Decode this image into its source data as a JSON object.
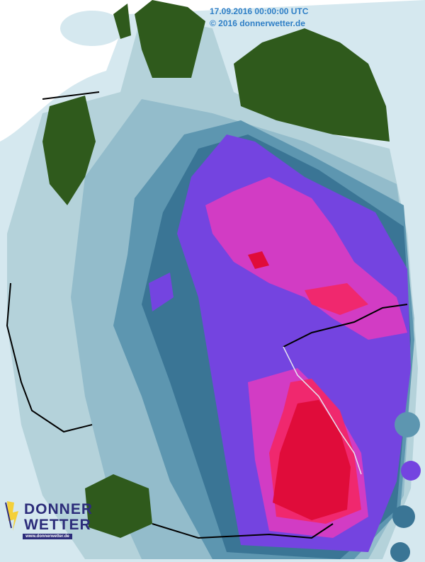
{
  "header": {
    "timestamp": "17.09.2016 00:00:00 UTC",
    "copyright": "© 2016 donnerwetter.de"
  },
  "logo": {
    "line1": "DONNER",
    "line2": "WETTER",
    "url": "www.donnerwetter.de",
    "icon": "lightning-bolt-icon"
  },
  "map": {
    "type": "precipitation radar",
    "region": "Germany",
    "colors": {
      "background": "#ffffff",
      "sea_light": "#d5e8ef",
      "level_1": "#b4d2da",
      "level_2": "#93bccb",
      "level_3": "#5d96b0",
      "level_4": "#3a7595",
      "level_5": "#7444e0",
      "level_6": "#d23cc4",
      "level_7": "#f0286e",
      "level_8": "#e00c3a",
      "no_data_land": "#2f5a1c",
      "border": "#000000"
    }
  }
}
